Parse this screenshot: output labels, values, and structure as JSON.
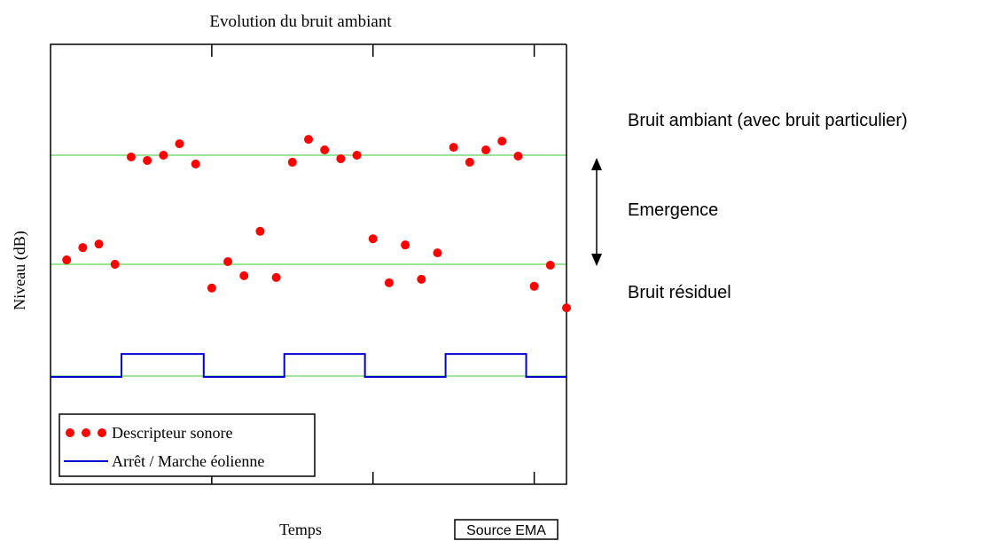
{
  "chart_data": {
    "type": "scatter",
    "title": "Evolution du bruit ambiant",
    "xlabel": "Temps",
    "ylabel": "Niveau (dB)",
    "xlim": [
      0,
      32
    ],
    "ylim": [
      0,
      100
    ],
    "xticks": [
      10,
      20,
      30
    ],
    "yticks": [
      24.6,
      50,
      74.8,
      100
    ],
    "grid": true,
    "grid_color": "#33cc33",
    "legend": "lower left",
    "series": [
      {
        "name": "Descripteur sonore",
        "color": "#ff0000",
        "type": "scatter",
        "x": [
          1,
          2,
          3,
          4,
          5,
          6,
          7,
          8,
          9,
          10,
          11,
          12,
          13,
          14,
          15,
          16,
          17,
          18,
          19,
          20,
          21,
          22,
          23,
          24,
          25,
          26,
          27,
          28,
          29,
          30,
          31,
          32
        ],
        "values": [
          51.0,
          53.8,
          54.6,
          50.0,
          74.4,
          73.6,
          74.8,
          77.4,
          72.8,
          44.6,
          50.6,
          47.4,
          57.5,
          47.0,
          73.2,
          78.4,
          76.0,
          74.0,
          74.8,
          55.8,
          45.8,
          54.4,
          46.6,
          52.6,
          76.6,
          73.2,
          76.0,
          78.0,
          74.6,
          45.0,
          49.8,
          40.1
        ]
      },
      {
        "name": "Arrêt / Marche éolienne",
        "color": "#0000cc",
        "type": "line",
        "x": [
          0,
          4.4,
          4.4,
          9.5,
          9.5,
          14.5,
          14.5,
          19.5,
          19.5,
          24.5,
          24.5,
          29.5,
          29.5,
          32
        ],
        "values": [
          24.4,
          24.4,
          29.6,
          29.6,
          24.4,
          24.4,
          29.6,
          29.6,
          24.4,
          24.4,
          29.6,
          29.6,
          24.4,
          24.4
        ]
      }
    ],
    "annotations": [
      "Bruit ambiant (avec bruit particulier)",
      "Emergence",
      "Bruit résiduel"
    ],
    "source": "Source EMA"
  }
}
